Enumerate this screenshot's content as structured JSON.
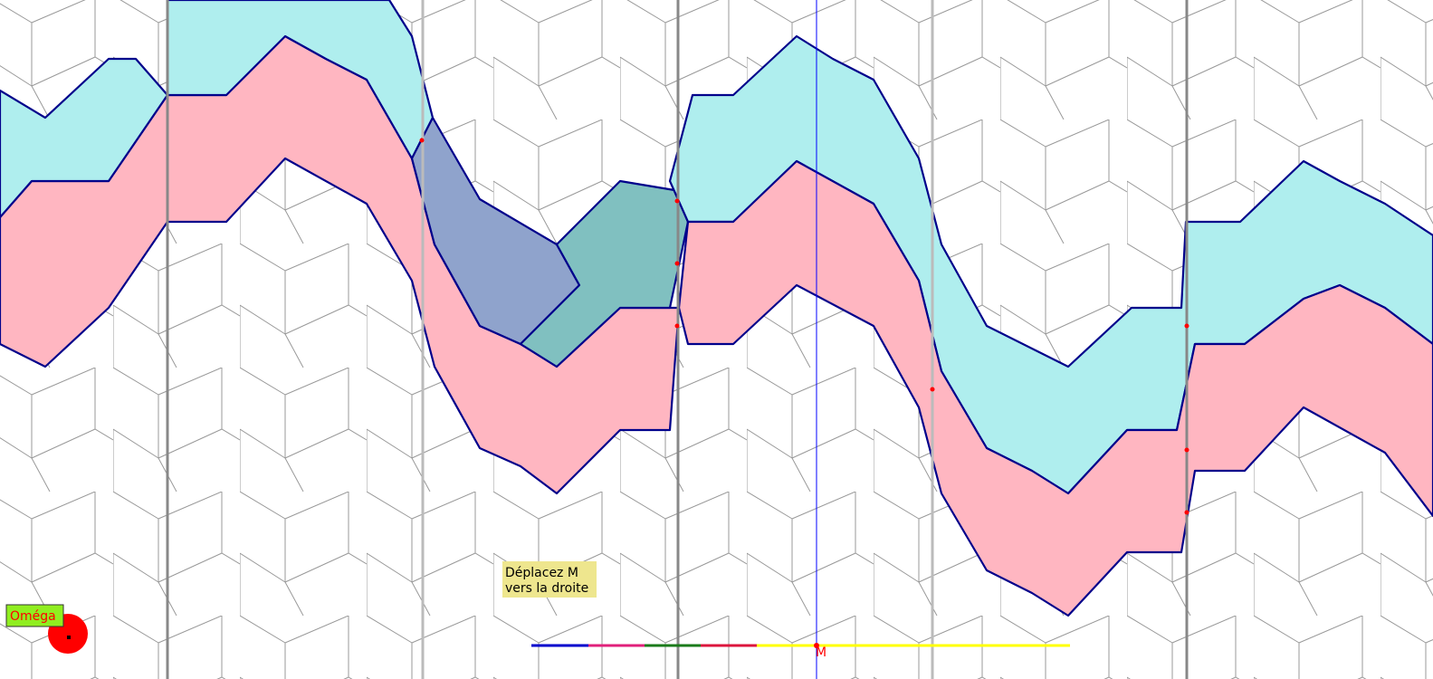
{
  "hint": {
    "line1": "Déplacez M",
    "line2": "vers la droite"
  },
  "points": {
    "omega": "Oméga",
    "m": "M"
  }
}
